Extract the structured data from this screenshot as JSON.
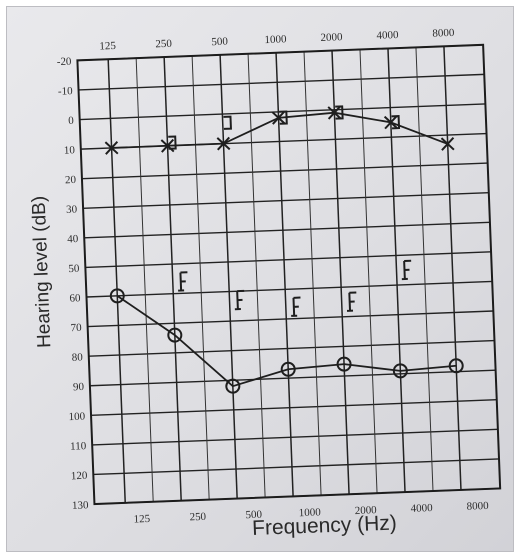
{
  "chart_data": {
    "type": "line",
    "title": "",
    "xlabel": "Frequency (Hz)",
    "ylabel": "Hearing level (dB)",
    "x_scale": "log",
    "y_inverted": true,
    "ylim": [
      -20,
      130
    ],
    "grid": true,
    "frequency_ticks_top": [
      "125",
      "250",
      "500",
      "1000",
      "2000",
      "4000",
      "8000"
    ],
    "frequency_ticks_bottom": [
      "125",
      "250",
      "500",
      "1000",
      "2000",
      "4000",
      "8000"
    ],
    "level_ticks": [
      "-20",
      "-10",
      "0",
      "10",
      "20",
      "30",
      "40",
      "50",
      "60",
      "70",
      "80",
      "90",
      "100",
      "110",
      "120",
      "130"
    ],
    "series": [
      {
        "marker": "x",
        "connected": true,
        "points": [
          [
            125,
            10
          ],
          [
            250,
            10
          ],
          [
            500,
            10
          ],
          [
            1000,
            2
          ],
          [
            2000,
            1
          ],
          [
            4000,
            5
          ],
          [
            8000,
            13
          ]
        ]
      },
      {
        "marker": "bracket",
        "connected": false,
        "points": [
          [
            250,
            9
          ],
          [
            500,
            3
          ],
          [
            1000,
            2
          ],
          [
            2000,
            1
          ],
          [
            4000,
            5
          ]
        ]
      },
      {
        "marker": "o",
        "connected": true,
        "points": [
          [
            125,
            60
          ],
          [
            250,
            74
          ],
          [
            500,
            92
          ],
          [
            1000,
            87
          ],
          [
            2000,
            86
          ],
          [
            4000,
            89
          ],
          [
            8000,
            88
          ]
        ]
      },
      {
        "marker": "F",
        "connected": false,
        "points": [
          [
            250,
            56
          ],
          [
            500,
            63
          ],
          [
            1000,
            66
          ],
          [
            2000,
            65
          ],
          [
            4000,
            55
          ]
        ]
      }
    ]
  }
}
